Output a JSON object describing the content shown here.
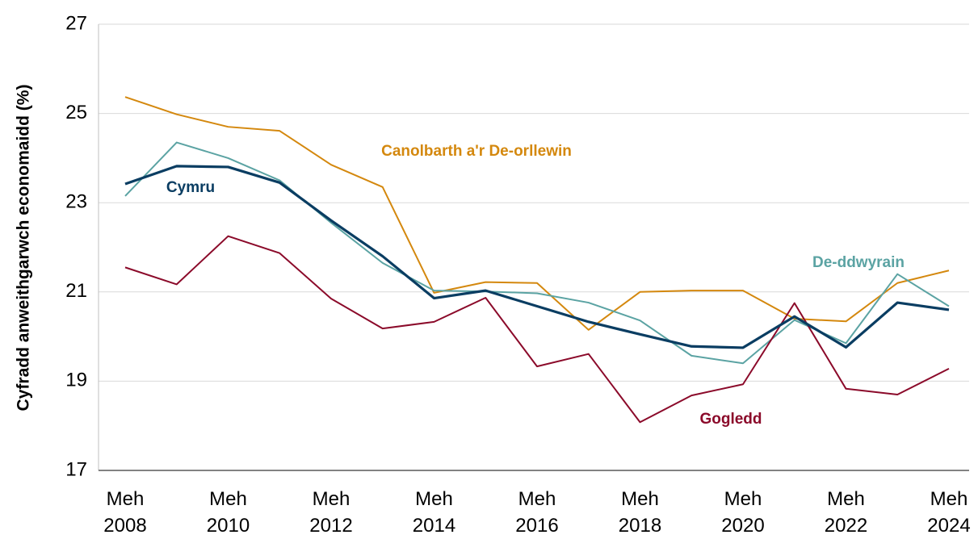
{
  "chart_data": {
    "type": "line",
    "y_axis_label": "Cyfradd anweithgarwch economaidd (%)",
    "categories": [
      "Meh 2008",
      null,
      "Meh 2010",
      null,
      "Meh 2012",
      null,
      "Meh 2014",
      null,
      "Meh 2016",
      null,
      "Meh 2018",
      null,
      "Meh 2020",
      null,
      "Meh 2022",
      null,
      "Meh 2024"
    ],
    "ylim": [
      17,
      27
    ],
    "yticks": [
      17,
      19,
      21,
      23,
      25,
      27
    ],
    "grid": true,
    "series": [
      {
        "name": "Canolbarth a'r De-orllewin",
        "color": "#d4880e",
        "values": [
          25.37,
          24.98,
          24.7,
          24.61,
          23.85,
          23.35,
          20.98,
          21.22,
          21.2,
          20.15,
          21.0,
          21.03,
          21.03,
          20.4,
          20.34,
          21.2,
          21.48
        ]
      },
      {
        "name": "De-ddwyrain",
        "color": "#5ba3a3",
        "values": [
          23.15,
          24.35,
          24.0,
          23.5,
          22.55,
          21.65,
          21.03,
          21.01,
          20.97,
          20.76,
          20.36,
          19.57,
          19.4,
          20.37,
          19.85,
          21.4,
          20.68
        ]
      },
      {
        "name": "Gogledd",
        "color": "#8b0a2a",
        "values": [
          21.55,
          21.17,
          22.25,
          21.87,
          20.85,
          20.18,
          20.33,
          20.87,
          19.33,
          19.61,
          18.08,
          18.68,
          18.93,
          20.75,
          18.83,
          18.7,
          19.28
        ]
      },
      {
        "name": "Cymru",
        "color": "#0a3d62",
        "values": [
          23.42,
          23.82,
          23.8,
          23.45,
          22.6,
          21.8,
          20.86,
          21.03,
          20.68,
          20.33,
          20.05,
          19.78,
          19.75,
          20.45,
          19.76,
          20.76,
          20.6
        ]
      }
    ]
  }
}
